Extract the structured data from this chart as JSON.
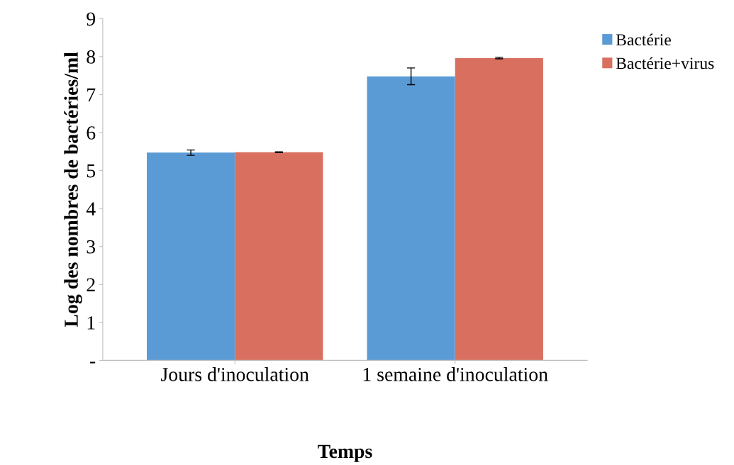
{
  "chart_data": {
    "type": "bar",
    "xlabel": "Temps",
    "ylabel": "Log des nombres de bactéries/ml",
    "categories": [
      "Jours d'inoculation",
      "1 semaine d'inoculation"
    ],
    "series": [
      {
        "name": "Bactérie",
        "color": "#5b9bd5",
        "values": [
          5.47,
          7.48
        ],
        "errors": [
          0.07,
          0.22
        ]
      },
      {
        "name": "Bactérie+virus",
        "color": "#d9705f",
        "values": [
          5.48,
          7.96
        ],
        "errors": [
          0.01,
          0.02
        ]
      }
    ],
    "ylim": [
      0,
      9
    ],
    "yticks": [
      {
        "value": 0,
        "label": "-"
      },
      1,
      2,
      3,
      4,
      5,
      6,
      7,
      8,
      9
    ],
    "grid": false,
    "legend": "top right"
  }
}
